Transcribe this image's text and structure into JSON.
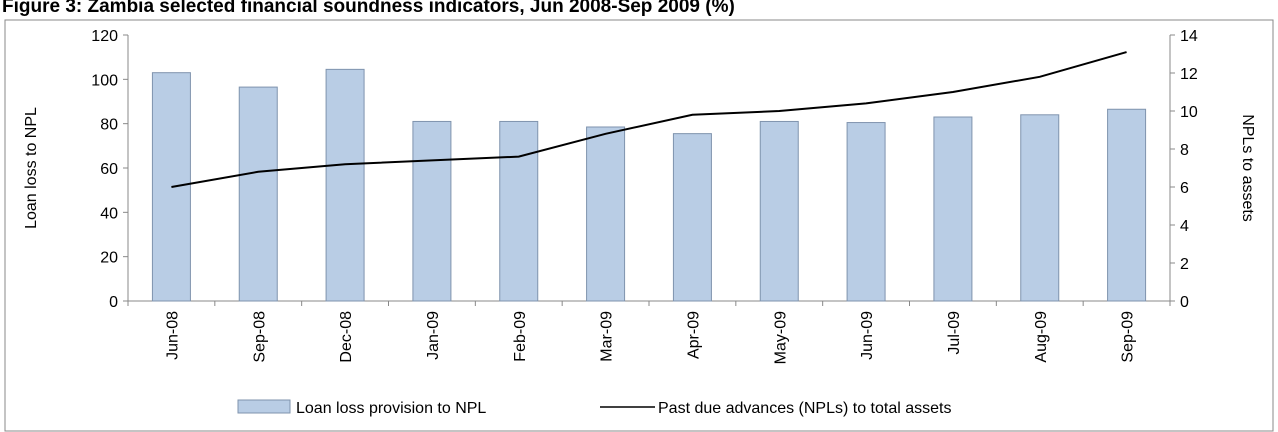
{
  "chart_data": {
    "type": "combo",
    "title": "Figure 3: Zambia selected financial soundness indicators, Jun 2008-Sep 2009 (%)",
    "y_label": "Loan loss to NPL",
    "y2_label": "NPLs to assets",
    "categories": [
      "Jun-08",
      "Sep-08",
      "Dec-08",
      "Jan-09",
      "Feb-09",
      "Mar-09",
      "Apr-09",
      "May-09",
      "Jun-09",
      "Jul-09",
      "Aug-09",
      "Sep-09"
    ],
    "series": [
      {
        "name": "Loan loss provision to NPL",
        "type": "bar",
        "color": "#b9cde5",
        "values": [
          103,
          96.5,
          104.5,
          81,
          81,
          78.5,
          75.5,
          81,
          80.5,
          83,
          84,
          86.5
        ]
      },
      {
        "name": "Past due advances (NPLs) to total assets",
        "type": "line",
        "axis": "y2",
        "color": "#000000",
        "values": [
          6.0,
          6.8,
          7.2,
          7.4,
          7.6,
          8.8,
          9.8,
          10.0,
          10.4,
          11.0,
          11.8,
          13.1
        ]
      }
    ],
    "ylim": [
      0,
      120
    ],
    "yticks": [
      0,
      20,
      40,
      60,
      80,
      100,
      120
    ],
    "y2lim": [
      0,
      14
    ],
    "y2ticks": [
      0,
      2,
      4,
      6,
      8,
      10,
      12,
      14
    ],
    "grid": false,
    "legend": "bottom"
  }
}
